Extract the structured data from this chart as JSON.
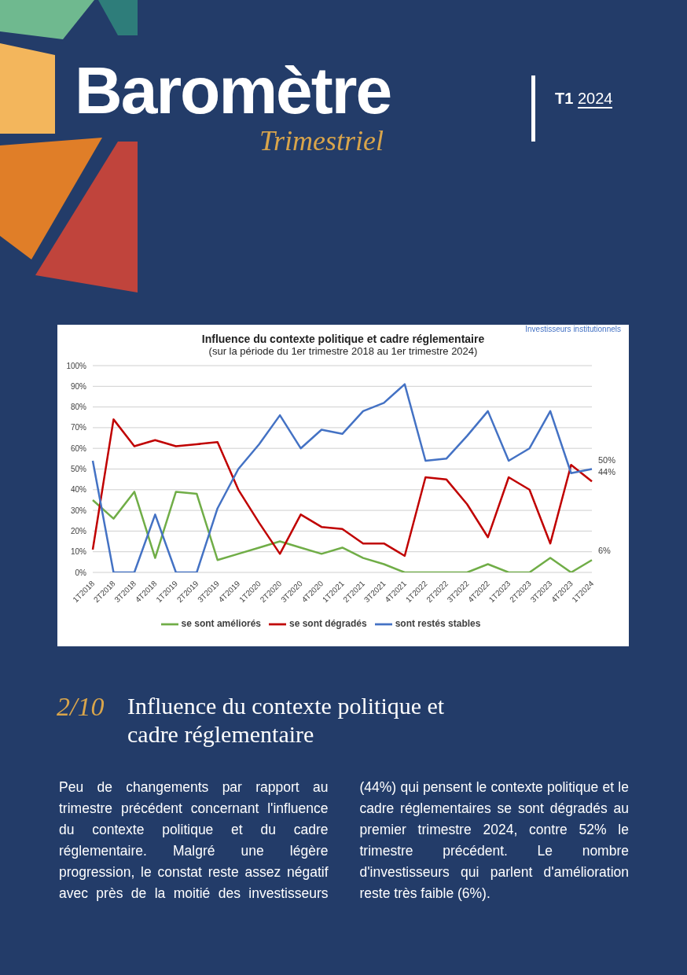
{
  "chart_data": {
    "type": "line",
    "title": "Influence du contexte politique et cadre réglementaire",
    "subtitle": "(sur la période du 1er trimestre 2018 au 1er trimestre 2024)",
    "categories": [
      "1T2018",
      "2T2018",
      "3T2018",
      "4T2018",
      "1T2019",
      "2T2019",
      "3T2019",
      "4T2019",
      "1T2020",
      "2T2020",
      "3T2020",
      "4T2020",
      "1T2021",
      "2T2021",
      "3T2021",
      "4T2021",
      "1T2022",
      "2T2022",
      "3T2022",
      "4T2022",
      "1T2023",
      "2T2023",
      "3T2023",
      "4T2023",
      "1T2024"
    ],
    "series": [
      {
        "name": "se sont améliorés",
        "color": "#70ad47",
        "values": [
          35,
          26,
          39,
          7,
          39,
          38,
          6,
          9,
          12,
          15,
          12,
          9,
          12,
          7,
          4,
          0,
          0,
          0,
          0,
          4,
          0,
          0,
          7,
          0,
          6
        ],
        "value_labels": [
          null,
          null,
          null,
          null,
          null,
          null,
          null,
          null,
          null,
          null,
          null,
          null,
          null,
          null,
          null,
          null,
          null,
          null,
          null,
          null,
          null,
          null,
          null,
          null,
          "6%"
        ]
      },
      {
        "name": "se sont dégradés",
        "color": "#c00000",
        "values": [
          11,
          74,
          61,
          64,
          61,
          62,
          63,
          40,
          24,
          9,
          28,
          22,
          21,
          14,
          14,
          8,
          46,
          45,
          33,
          17,
          46,
          40,
          14,
          52,
          44
        ],
        "value_labels": [
          null,
          null,
          null,
          null,
          null,
          null,
          null,
          null,
          null,
          null,
          null,
          null,
          null,
          null,
          null,
          null,
          null,
          null,
          null,
          null,
          null,
          null,
          null,
          null,
          "44%"
        ]
      },
      {
        "name": "sont restés stables",
        "color": "#4472c4",
        "values": [
          54,
          0,
          0,
          28,
          0,
          0,
          31,
          50,
          62,
          76,
          60,
          69,
          67,
          78,
          82,
          91,
          54,
          55,
          66,
          78,
          54,
          60,
          78,
          48,
          50
        ],
        "value_labels": [
          null,
          null,
          null,
          null,
          null,
          null,
          null,
          null,
          null,
          null,
          null,
          null,
          null,
          null,
          null,
          null,
          null,
          null,
          null,
          null,
          null,
          null,
          null,
          null,
          "50%"
        ]
      }
    ],
    "ylim": [
      0,
      100
    ],
    "yticks": [
      {
        "value": 0,
        "label": "0%"
      },
      {
        "value": 10,
        "label": "10%"
      },
      {
        "value": 20,
        "label": "20%"
      },
      {
        "value": 30,
        "label": "30%"
      },
      {
        "value": 40,
        "label": "40%"
      },
      {
        "value": 50,
        "label": "50%"
      },
      {
        "value": 60,
        "label": "60%"
      },
      {
        "value": 70,
        "label": "70%"
      },
      {
        "value": 80,
        "label": "80%"
      },
      {
        "value": 90,
        "label": "90%"
      },
      {
        "value": 100,
        "label": "100%"
      }
    ],
    "grid": "y",
    "legend": "bottom",
    "marker": "none",
    "line_style": "solid",
    "annotations": [
      "Baromètre",
      "Trimestriel",
      "T1",
      "2024",
      "Investisseurs institutionnels",
      "2/10",
      "Influence du contexte politique et cadre réglementaire",
      "Peu de changements par rapport au trimestre précédent concernant l'influence du contexte politique et du cadre réglementaire. Malgré une légère progression, le constat reste assez négatif avec près de la moitié des investisseurs (44%) qui pensent le contexte politique et le cadre réglementaires se sont dégradés au premier trimestre 2024, contre 52% le trimestre précédent. Le nombre d'investisseurs qui parlent d'amélioration reste très faible (6%)."
    ]
  }
}
